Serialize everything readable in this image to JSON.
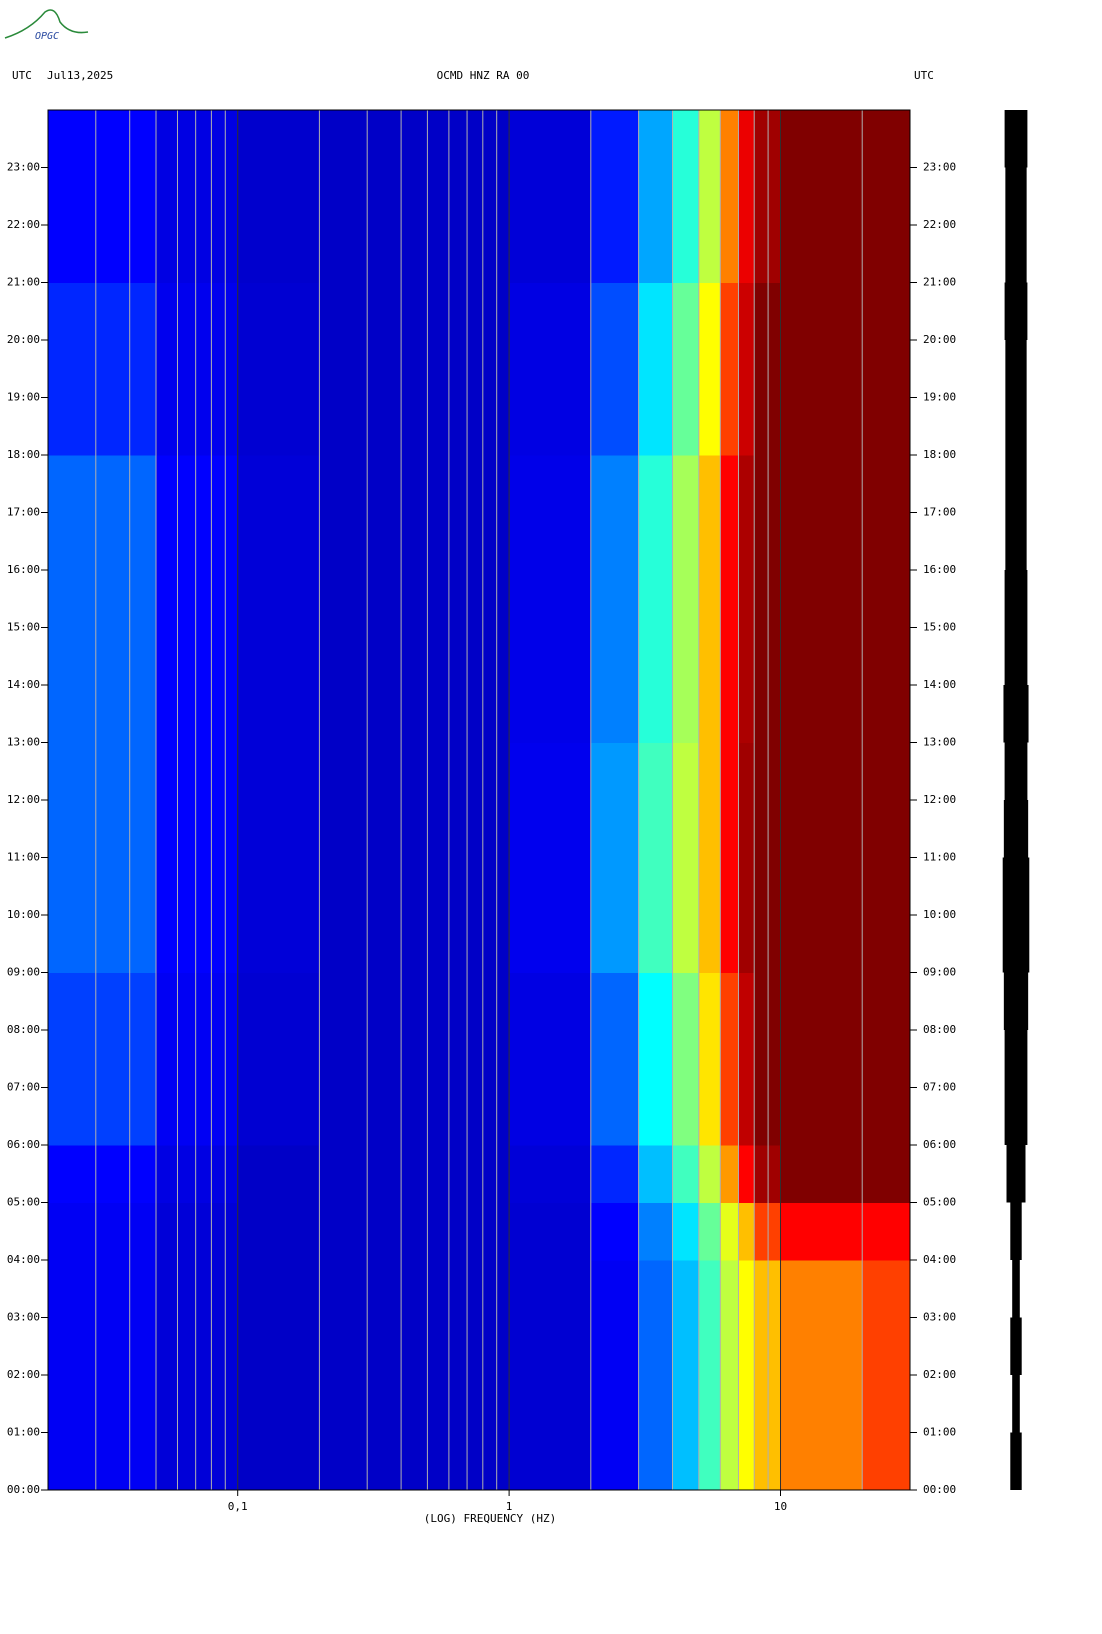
{
  "chart_data": {
    "type": "spectrogram",
    "logo_text": "OPGC",
    "left_label": "UTC",
    "date": "Jul13,2025",
    "title": "OCMD HNZ RA 00",
    "right_label": "UTC",
    "xlabel": "(LOG) FREQUENCY (HZ)",
    "log_x": true,
    "xlim": [
      0.02,
      30
    ],
    "xticks": [
      {
        "value": 0.1,
        "label": "0,1"
      },
      1,
      10
    ],
    "x_minor_ticks": [
      0.03,
      0.04,
      0.05,
      0.06,
      0.07,
      0.08,
      0.09,
      0.2,
      0.3,
      0.4,
      0.5,
      0.6,
      0.7,
      0.8,
      0.9,
      2,
      3,
      4,
      5,
      6,
      7,
      8,
      9,
      20
    ],
    "ylim": [
      0,
      24
    ],
    "yticks": [
      {
        "value": 0,
        "label": "00:00"
      },
      {
        "value": 1,
        "label": "01:00"
      },
      {
        "value": 2,
        "label": "02:00"
      },
      {
        "value": 3,
        "label": "03:00"
      },
      {
        "value": 4,
        "label": "04:00"
      },
      {
        "value": 5,
        "label": "05:00"
      },
      {
        "value": 6,
        "label": "06:00"
      },
      {
        "value": 7,
        "label": "07:00"
      },
      {
        "value": 8,
        "label": "08:00"
      },
      {
        "value": 9,
        "label": "09:00"
      },
      {
        "value": 10,
        "label": "10:00"
      },
      {
        "value": 11,
        "label": "11:00"
      },
      {
        "value": 12,
        "label": "12:00"
      },
      {
        "value": 13,
        "label": "13:00"
      },
      {
        "value": 14,
        "label": "14:00"
      },
      {
        "value": 15,
        "label": "15:00"
      },
      {
        "value": 16,
        "label": "16:00"
      },
      {
        "value": 17,
        "label": "17:00"
      },
      {
        "value": 18,
        "label": "18:00"
      },
      {
        "value": 19,
        "label": "19:00"
      },
      {
        "value": 20,
        "label": "20:00"
      },
      {
        "value": 21,
        "label": "21:00"
      },
      {
        "value": 22,
        "label": "22:00"
      },
      {
        "value": 23,
        "label": "23:00"
      }
    ],
    "bins": [
      0.02,
      0.05,
      0.1,
      0.2,
      0.5,
      1,
      2,
      3,
      4,
      5,
      6,
      7,
      8,
      10,
      15,
      20,
      30
    ],
    "times": [
      0,
      1,
      2,
      3,
      4,
      5,
      6,
      7,
      8,
      9,
      10,
      11,
      12,
      13,
      14,
      15,
      16,
      17,
      18,
      19,
      20,
      21,
      22,
      23,
      24
    ],
    "zlim": [
      0,
      10
    ],
    "colormap": [
      "#00008f",
      "#0000ff",
      "#00ffff",
      "#ffff00",
      "#ff0000",
      "#800000"
    ],
    "values": [
      [
        1.8,
        1.3,
        1,
        1,
        1,
        1.2,
        1.8,
        2.8,
        3.5,
        4.5,
        5.5,
        6,
        6.5,
        7,
        7,
        7.5
      ],
      [
        1.8,
        1.3,
        1,
        1,
        1,
        1.2,
        1.8,
        2.8,
        3.5,
        4.5,
        5.5,
        6,
        6.5,
        7,
        7,
        7.5
      ],
      [
        1.8,
        1.3,
        1,
        1,
        1,
        1.2,
        1.8,
        2.8,
        3.5,
        4.5,
        5.5,
        6,
        6.5,
        7,
        7,
        7.5
      ],
      [
        1.8,
        1.3,
        1,
        1,
        1,
        1.2,
        1.8,
        2.8,
        3.5,
        4.5,
        5.5,
        6,
        6.5,
        7,
        7,
        7.5
      ],
      [
        1.8,
        1.3,
        1,
        1,
        1,
        1.2,
        2,
        3,
        3.8,
        4.8,
        5.8,
        6.5,
        7.5,
        8,
        8,
        8
      ],
      [
        2,
        1.5,
        1,
        1,
        1,
        1.3,
        2.3,
        3.5,
        4.5,
        5.5,
        6.8,
        8,
        9.5,
        10,
        10,
        10
      ],
      [
        2.5,
        1.8,
        1.2,
        1,
        1,
        1.5,
        2.8,
        4,
        5,
        6.2,
        7.5,
        9,
        10,
        10,
        10,
        10
      ],
      [
        2.5,
        1.8,
        1.2,
        1,
        1,
        1.5,
        2.8,
        4,
        5,
        6.2,
        7.5,
        9,
        10,
        10,
        10,
        10
      ],
      [
        2.5,
        1.8,
        1.2,
        1,
        1,
        1.5,
        2.8,
        4,
        5,
        6.2,
        7.5,
        9,
        10,
        10,
        10,
        10
      ],
      [
        2.8,
        2,
        1.3,
        1,
        1,
        1.7,
        3.2,
        4.5,
        5.5,
        6.5,
        8,
        9.5,
        10,
        10,
        10,
        10
      ],
      [
        2.8,
        2,
        1.3,
        1,
        1,
        1.7,
        3.2,
        4.5,
        5.5,
        6.5,
        8,
        9.5,
        10,
        10,
        10,
        10
      ],
      [
        2.8,
        2,
        1.3,
        1,
        1,
        1.7,
        3.2,
        4.5,
        5.5,
        6.5,
        8,
        9.5,
        10,
        10,
        10,
        10
      ],
      [
        2.8,
        2,
        1.3,
        1,
        1,
        1.7,
        3.2,
        4.5,
        5.5,
        6.5,
        8,
        9.5,
        10,
        10,
        10,
        10
      ],
      [
        2.8,
        2,
        1.3,
        1,
        1,
        1.6,
        3,
        4.3,
        5.3,
        6.5,
        8,
        9.3,
        10,
        10,
        10,
        10
      ],
      [
        2.8,
        2,
        1.3,
        1,
        1,
        1.6,
        3,
        4.3,
        5.3,
        6.5,
        8,
        9.3,
        10,
        10,
        10,
        10
      ],
      [
        2.8,
        2,
        1.3,
        1,
        1,
        1.6,
        3,
        4.3,
        5.3,
        6.5,
        8,
        9.3,
        10,
        10,
        10,
        10
      ],
      [
        2.8,
        2,
        1.3,
        1,
        1,
        1.6,
        3,
        4.3,
        5.3,
        6.5,
        8,
        9.3,
        10,
        10,
        10,
        10
      ],
      [
        2.8,
        2,
        1.3,
        1,
        1,
        1.6,
        3,
        4.3,
        5.3,
        6.5,
        8,
        9.3,
        10,
        10,
        10,
        10
      ],
      [
        2.3,
        1.7,
        1.2,
        1,
        1,
        1.5,
        2.6,
        3.8,
        4.8,
        6,
        7.5,
        8.8,
        10,
        10,
        10,
        10
      ],
      [
        2.3,
        1.7,
        1.2,
        1,
        1,
        1.5,
        2.6,
        3.8,
        4.8,
        6,
        7.5,
        8.8,
        10,
        10,
        10,
        10
      ],
      [
        2.3,
        1.7,
        1.2,
        1,
        1,
        1.5,
        2.6,
        3.8,
        4.8,
        6,
        7.5,
        8.8,
        10,
        10,
        10,
        10
      ],
      [
        2,
        1.5,
        1.1,
        1,
        1,
        1.3,
        2.2,
        3.3,
        4.3,
        5.5,
        7,
        8.3,
        9.5,
        10,
        10,
        10
      ],
      [
        2,
        1.5,
        1.1,
        1,
        1,
        1.3,
        2.2,
        3.3,
        4.3,
        5.5,
        7,
        8.3,
        9.5,
        10,
        10,
        10
      ],
      [
        2,
        1.5,
        1.1,
        1,
        1,
        1.3,
        2.2,
        3.3,
        4.3,
        5.5,
        7,
        8.3,
        9.5,
        10,
        10,
        10
      ]
    ],
    "trace_lim": [
      0,
      10
    ],
    "trace_amplitude": [
      1.5,
      1,
      1.5,
      1,
      1.5,
      2.5,
      3,
      3,
      3.2,
      3.5,
      3.5,
      3.2,
      3,
      3.3,
      3,
      3,
      2.8,
      2.8,
      2.8,
      2.8,
      3,
      2.8,
      2.8,
      3
    ]
  }
}
